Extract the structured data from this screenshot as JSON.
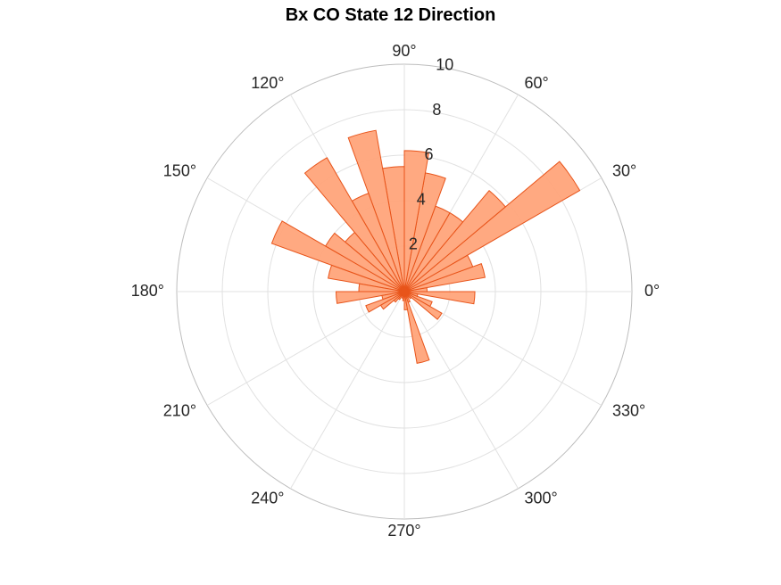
{
  "chart_data": {
    "type": "polar-histogram",
    "title": "Bx  CO State 12 Direction",
    "bin_width_deg": 10,
    "bins": [
      {
        "start": 0,
        "value": 1.0
      },
      {
        "start": 10,
        "value": 3.6
      },
      {
        "start": 20,
        "value": 3.2
      },
      {
        "start": 30,
        "value": 8.9
      },
      {
        "start": 40,
        "value": 5.8
      },
      {
        "start": 50,
        "value": 4.0
      },
      {
        "start": 60,
        "value": 4.0
      },
      {
        "start": 70,
        "value": 5.3
      },
      {
        "start": 80,
        "value": 6.2
      },
      {
        "start": 90,
        "value": 5.5
      },
      {
        "start": 100,
        "value": 7.2
      },
      {
        "start": 110,
        "value": 4.6
      },
      {
        "start": 120,
        "value": 6.8
      },
      {
        "start": 130,
        "value": 3.4
      },
      {
        "start": 140,
        "value": 4.0
      },
      {
        "start": 150,
        "value": 6.2
      },
      {
        "start": 160,
        "value": 3.4
      },
      {
        "start": 170,
        "value": 2.0
      },
      {
        "start": 180,
        "value": 3.0
      },
      {
        "start": 190,
        "value": 1.0
      },
      {
        "start": 200,
        "value": 1.8
      },
      {
        "start": 210,
        "value": 1.2
      },
      {
        "start": 220,
        "value": 0.6
      },
      {
        "start": 230,
        "value": 0.4
      },
      {
        "start": 240,
        "value": 0.2
      },
      {
        "start": 250,
        "value": 0.3
      },
      {
        "start": 260,
        "value": 0.4
      },
      {
        "start": 270,
        "value": 0.8
      },
      {
        "start": 280,
        "value": 3.2
      },
      {
        "start": 290,
        "value": 0.5
      },
      {
        "start": 300,
        "value": 0.3
      },
      {
        "start": 310,
        "value": 0.4
      },
      {
        "start": 320,
        "value": 1.9
      },
      {
        "start": 330,
        "value": 1.3
      },
      {
        "start": 340,
        "value": 0.6
      },
      {
        "start": 350,
        "value": 3.1
      }
    ],
    "r_lim": [
      0,
      10
    ],
    "r_ticks": [
      2,
      4,
      6,
      8,
      10
    ],
    "r_tick_labels": [
      "2",
      "4",
      "6",
      "8",
      "10"
    ],
    "r_tick_label_angle_deg": 80,
    "theta_ticks_deg": [
      0,
      30,
      60,
      90,
      120,
      150,
      180,
      210,
      240,
      270,
      300,
      330
    ],
    "theta_tick_labels": [
      "0°",
      "30°",
      "60°",
      "90°",
      "120°",
      "150°",
      "180°",
      "210°",
      "240°",
      "270°",
      "300°",
      "330°"
    ],
    "grid": true,
    "colors": {
      "bar_fill": "#ffa47a",
      "bar_edge": "#e8541a",
      "grid": "#e1e1e1",
      "outer_ring": "#bdbdbd",
      "text": "#262626"
    }
  }
}
